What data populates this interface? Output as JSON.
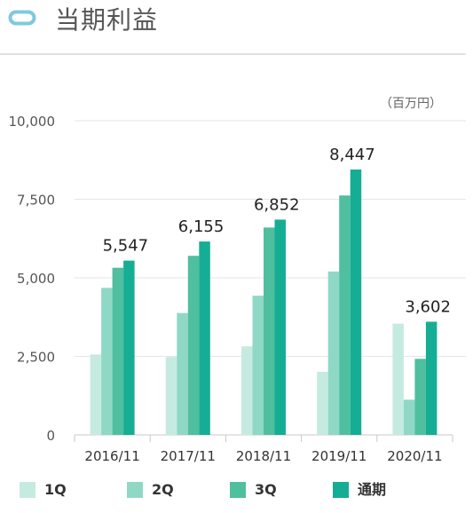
{
  "title": "当期利益",
  "chart_data": {
    "type": "bar",
    "unit_label": "（百万円）",
    "categories": [
      "2016/11",
      "2017/11",
      "2018/11",
      "2019/11",
      "2020/11"
    ],
    "series": [
      {
        "name": "1Q",
        "color": "#c5ebe1",
        "values": [
          2560,
          2480,
          2820,
          2010,
          3540
        ]
      },
      {
        "name": "2Q",
        "color": "#8fd8c6",
        "values": [
          4680,
          3880,
          4430,
          5200,
          1120
        ]
      },
      {
        "name": "3Q",
        "color": "#4fbf9f",
        "values": [
          5320,
          5700,
          6600,
          7620,
          2420
        ]
      },
      {
        "name": "通期",
        "color": "#16ad95",
        "values": [
          5547,
          6155,
          6852,
          8447,
          3602
        ]
      }
    ],
    "total_labels": [
      "5,547",
      "6,155",
      "6,852",
      "8,447",
      "3,602"
    ],
    "ylim": [
      0,
      10000
    ],
    "yticks": [
      0,
      2500,
      5000,
      7500,
      10000
    ],
    "ytick_labels": [
      "0",
      "2,500",
      "5,000",
      "7,500",
      "10,000"
    ],
    "grid": true,
    "legend_position": "bottom"
  }
}
